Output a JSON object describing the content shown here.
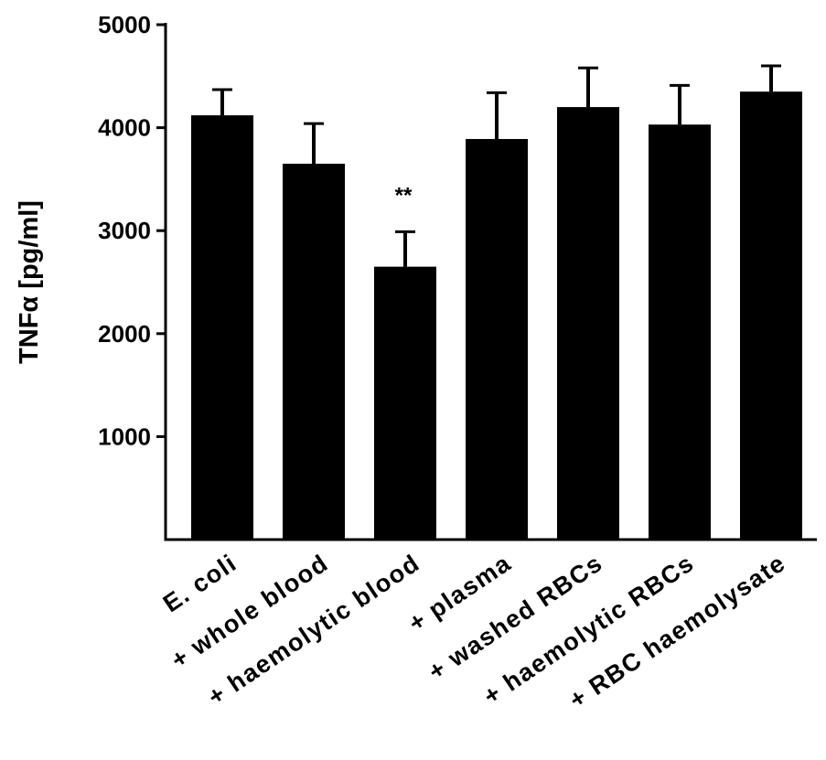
{
  "chart_data": {
    "type": "bar",
    "ylabel": "TNFα [pg/ml]",
    "ylim": [
      0,
      5000
    ],
    "yticks": [
      1000,
      2000,
      3000,
      4000,
      5000
    ],
    "categories": [
      "E. coli",
      "+ whole blood",
      "+ haemolytic blood",
      "+ plasma",
      "+ washed RBCs",
      "+ haemolytic RBCs",
      "+ RBC haemolysate"
    ],
    "values": [
      4120,
      3650,
      2650,
      3890,
      4200,
      4030,
      4350
    ],
    "errors": [
      250,
      390,
      340,
      450,
      380,
      380,
      250
    ],
    "annotations": [
      {
        "category_index": 2,
        "text": "**"
      }
    ],
    "bar_color": "#000000",
    "grid": false,
    "legend": "none"
  }
}
